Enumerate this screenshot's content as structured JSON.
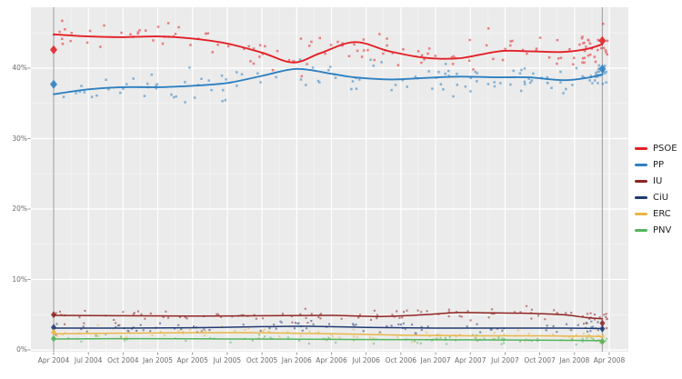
{
  "chart_data": {
    "type": "scatter",
    "title": "",
    "x_axis": {
      "unit": "months since Apr 2004",
      "tick_positions_months": [
        0,
        3,
        6,
        9,
        12,
        15,
        18,
        21,
        24,
        27,
        30,
        33,
        36,
        39,
        42,
        45,
        48
      ],
      "tick_labels": [
        "Apr 2004",
        "Jul 2004",
        "Oct 2004",
        "Jan 2005",
        "Apr 2005",
        "Jul 2005",
        "Oct 2005",
        "Jan 2006",
        "Apr 2006",
        "Jul 2006",
        "Oct 2006",
        "Jan 2007",
        "Apr 2007",
        "Jul 2007",
        "Oct 2007",
        "Jan 2008",
        "Apr 2008"
      ]
    },
    "y_axis": {
      "tick_values": [
        0,
        10,
        20,
        30,
        40
      ],
      "tick_labels": [
        "0%",
        "10%",
        "20%",
        "30%",
        "40%"
      ],
      "visible_range_pct": [
        0,
        48.7
      ],
      "grid": true
    },
    "legend_position": "right-center",
    "series": [
      {
        "name": "PSOE",
        "color": "#e32026",
        "trend": {
          "months": [
            0,
            3,
            6,
            9,
            12,
            15,
            18,
            20.7,
            23,
            26,
            29,
            32,
            35,
            38.5,
            41,
            44,
            46,
            47.4
          ],
          "values": [
            44.8,
            44.5,
            44.4,
            44.5,
            44.2,
            43.5,
            42.2,
            40.8,
            42.1,
            43.7,
            42.4,
            41.5,
            41.4,
            42.4,
            42.4,
            42.3,
            42.7,
            43.4
          ]
        },
        "scatter": {
          "points": 112,
          "end_cluster_points": 30,
          "spread_pct": 1.15
        }
      },
      {
        "name": "PP",
        "color": "#2e80c0",
        "trend": {
          "months": [
            0,
            3,
            6,
            9,
            12,
            15,
            18,
            21,
            24,
            26,
            29,
            32,
            35,
            38.5,
            41,
            44,
            46,
            47.4
          ],
          "values": [
            36.3,
            37.0,
            37.3,
            37.3,
            37.5,
            37.9,
            38.9,
            39.9,
            39.2,
            38.7,
            38.4,
            38.6,
            38.8,
            38.7,
            38.7,
            38.3,
            38.6,
            39.1
          ]
        },
        "scatter": {
          "points": 112,
          "end_cluster_points": 30,
          "spread_pct": 1.1
        }
      },
      {
        "name": "IU",
        "color": "#8e2522",
        "trend": {
          "months": [
            0,
            6,
            12,
            18,
            24,
            28,
            32,
            35,
            38,
            41,
            44,
            46,
            47.4
          ],
          "values": [
            4.9,
            4.85,
            4.8,
            4.85,
            4.9,
            4.75,
            5.0,
            5.3,
            5.25,
            5.2,
            5.0,
            4.6,
            4.4
          ]
        },
        "scatter": {
          "points": 95,
          "end_cluster_points": 16,
          "spread_pct": 0.55
        }
      },
      {
        "name": "CiU",
        "color": "#213a72",
        "trend": {
          "months": [
            0,
            6,
            12,
            18,
            22,
            27,
            33,
            39,
            44,
            47.4
          ],
          "values": [
            3.1,
            3.1,
            3.15,
            3.3,
            3.35,
            3.2,
            3.1,
            3.1,
            3.1,
            3.05
          ]
        },
        "scatter": {
          "points": 80,
          "end_cluster_points": 13,
          "spread_pct": 0.45
        }
      },
      {
        "name": "ERC",
        "color": "#eab648",
        "trend": {
          "months": [
            0,
            8,
            16,
            24,
            30,
            36,
            42,
            46,
            47.4
          ],
          "values": [
            2.3,
            2.4,
            2.45,
            2.3,
            2.1,
            2.0,
            2.0,
            1.95,
            1.9
          ]
        },
        "scatter": {
          "points": 72,
          "end_cluster_points": 11,
          "spread_pct": 0.42
        }
      },
      {
        "name": "PNV",
        "color": "#55b45b",
        "trend": {
          "months": [
            0,
            8,
            16,
            24,
            32,
            40,
            45,
            47.4
          ],
          "values": [
            1.55,
            1.6,
            1.55,
            1.5,
            1.45,
            1.4,
            1.35,
            1.3
          ]
        },
        "scatter": {
          "points": 72,
          "end_cluster_points": 11,
          "spread_pct": 0.38
        }
      }
    ],
    "election_markers": [
      {
        "month": 0,
        "results_pct": {
          "PSOE": 42.6,
          "PP": 37.7,
          "IU": 5.0,
          "CiU": 3.2,
          "ERC": 2.5,
          "PNV": 1.6
        }
      },
      {
        "month": 47.4,
        "results_pct": {
          "PSOE": 43.9,
          "PP": 39.9,
          "IU": 3.8,
          "CiU": 3.0,
          "ERC": 1.2,
          "PNV": 1.2
        }
      }
    ],
    "style": {
      "panel_background": "#ebebeb",
      "grid_color": "#ffffff",
      "axis_text_color": "#6b6b6b",
      "election_line_color": "#9b9b9b",
      "legend_text_color": "#222222"
    }
  }
}
